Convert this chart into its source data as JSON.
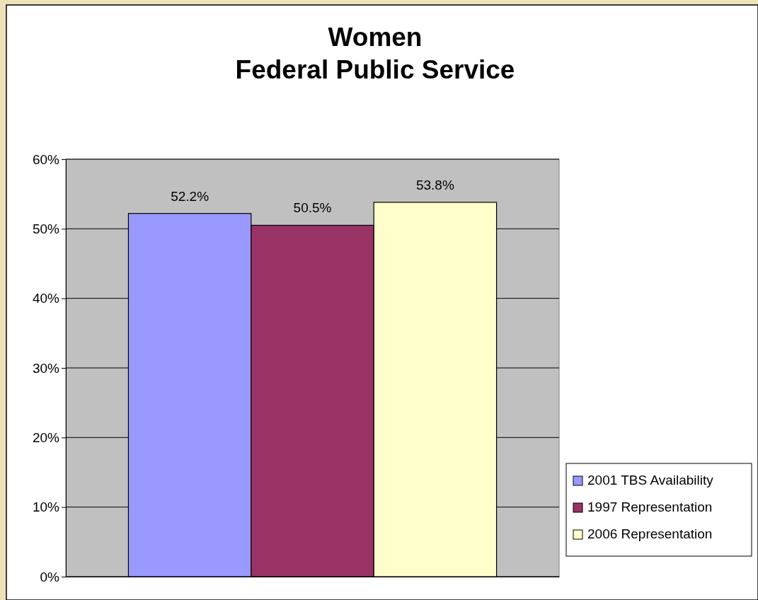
{
  "chart_data": {
    "type": "bar",
    "title": "Women\nFederal Public Service",
    "categories": [
      null
    ],
    "series": [
      {
        "name": "2001 TBS Availability",
        "color": "#9999ff",
        "values": [
          52.2
        ],
        "value_labels": [
          "52.2%"
        ]
      },
      {
        "name": "1997 Representation",
        "color": "#993366",
        "values": [
          50.5
        ],
        "value_labels": [
          "50.5%"
        ]
      },
      {
        "name": "2006 Representation",
        "color": "#ffffcc",
        "values": [
          53.8
        ],
        "value_labels": [
          "53.8%"
        ]
      }
    ],
    "ylim": [
      0,
      60
    ],
    "yticks": [
      {
        "value": 0,
        "label": "0%"
      },
      {
        "value": 10,
        "label": "10%"
      },
      {
        "value": 20,
        "label": "20%"
      },
      {
        "value": 30,
        "label": "30%"
      },
      {
        "value": 40,
        "label": "40%"
      },
      {
        "value": 50,
        "label": "50%"
      },
      {
        "value": 60,
        "label": "60%"
      }
    ],
    "grid": "y",
    "legend": "right"
  }
}
